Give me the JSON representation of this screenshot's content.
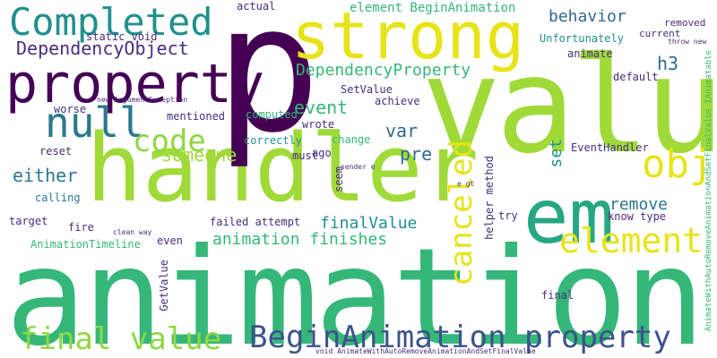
{
  "words": {
    "animation": "animation",
    "handler": "handler",
    "value": "value",
    "p": "p",
    "strong": "strong",
    "property": "property",
    "em": "em",
    "completed": "Completed",
    "null": "null",
    "code": "code",
    "obj": "obj",
    "element": "element",
    "canceled": "canceled",
    "final_value": "final value",
    "beginanimation_property": "BeginAnimation property",
    "dependencyobject": "DependencyObject",
    "dependencyproperty": "DependencyProperty",
    "element_beginanimation": "element BeginAnimation",
    "behavior": "behavior",
    "h3": "h3",
    "someone": "someone",
    "either": "either",
    "event": "event",
    "var": "var",
    "pre": "pre",
    "animation_finishes": "animation finishes",
    "finalvalue": "finalValue",
    "remove": "remove",
    "set": "set",
    "unfortunately": "Unfortunately",
    "static_void": "static void",
    "actual": "actual",
    "removed": "removed",
    "current": "current",
    "animate": "animate",
    "throw_new": "throw new",
    "default": "default",
    "setvalue": "SetValue",
    "achieve": "achieve",
    "wrote": "wrote",
    "computed": "computed",
    "mentioned": "mentioned",
    "worse": "worse",
    "correctly": "correctly",
    "change": "change",
    "ago": "ago",
    "eventhandler": "EventHandler",
    "reset": "reset",
    "new_argumentexception": "new ArgumentException",
    "calling": "calling",
    "target": "target",
    "fire": "fire",
    "animationtimeline": "AnimationTimeline",
    "failed_attempt": "failed attempt",
    "clean_way": "clean way",
    "getvalue": "GetValue",
    "even": "even",
    "must": "must",
    "sender_e": "sender e",
    "seem": "seem",
    "e_gt": "e gt",
    "helper_method": "helper method",
    "try": "try",
    "know_type": "know type",
    "final": "final",
    "ianimatable": "AnimateWithAutoRemoveAnimationAndSetFinalValue IAnimatable",
    "void_animate": "void AnimateWithAutoRemoveAnimationAndSetFinalValue"
  },
  "colors": {
    "background": "#ffffff",
    "dark_purple": "#440154",
    "indigo": "#3b528b",
    "slate_blue": "#472d7b",
    "blue": "#31688e",
    "teal": "#21908d",
    "teal_green": "#26a784",
    "green": "#35b779",
    "lime": "#90d743",
    "light_lime": "#a0da39",
    "yellow": "#e6e419",
    "dark_teal": "#2a788e"
  }
}
